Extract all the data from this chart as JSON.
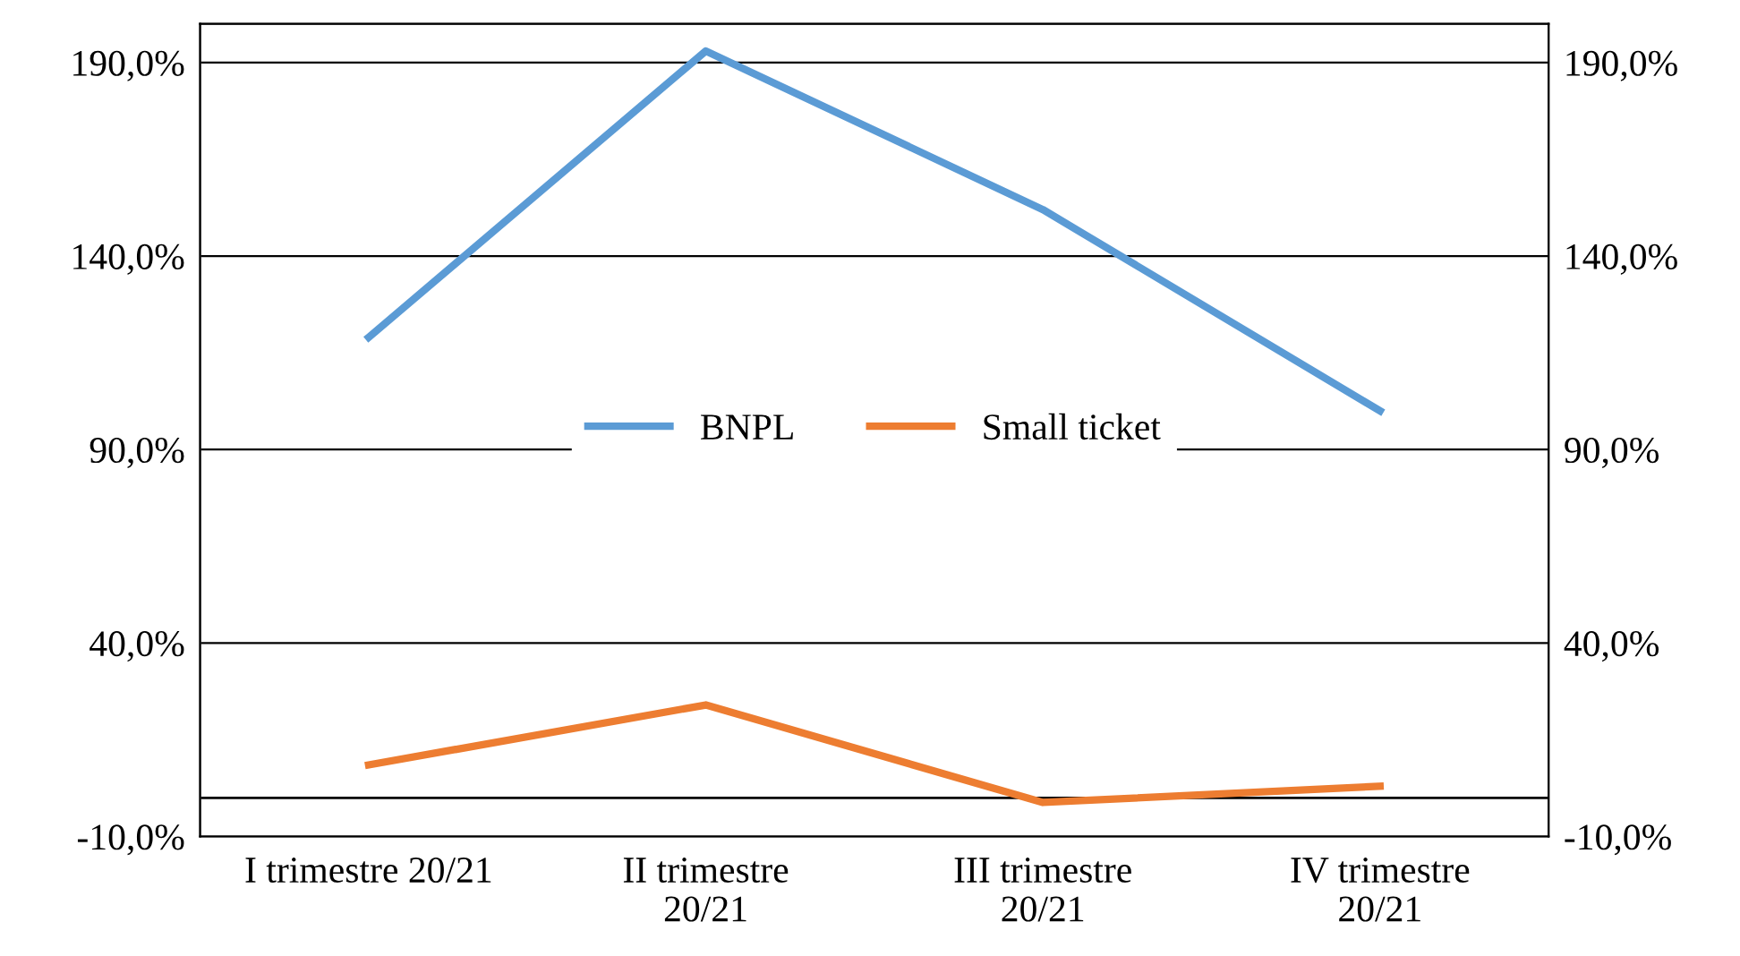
{
  "chart_data": {
    "type": "line",
    "categories": [
      "I trimestre 20/21",
      "II trimestre\n20/21",
      "III trimestre\n20/21",
      "IV trimestre\n20/21"
    ],
    "series": [
      {
        "name": "BNPL",
        "color": "#5b9bd5",
        "values": [
          119,
          193,
          152,
          100
        ]
      },
      {
        "name": "Small ticket",
        "color": "#ed7d31",
        "values": [
          8.5,
          24,
          -1.2,
          3
        ]
      }
    ],
    "ylim": [
      -10,
      200
    ],
    "yticks": [
      {
        "value": -10,
        "label": "-10,0%"
      },
      {
        "value": 40,
        "label": "40,0%"
      },
      {
        "value": 90,
        "label": "90,0%"
      },
      {
        "value": 140,
        "label": "140,0%"
      },
      {
        "value": 190,
        "label": "190,0%"
      }
    ],
    "y2lim": [
      -10,
      200
    ],
    "y2ticks": [
      {
        "value": -10,
        "label": "-10,0%"
      },
      {
        "value": 40,
        "label": "40,0%"
      },
      {
        "value": 90,
        "label": "90,0%"
      },
      {
        "value": 140,
        "label": "140,0%"
      },
      {
        "value": 190,
        "label": "190,0%"
      }
    ],
    "ref_lines": [
      {
        "axis": "y",
        "value": 0,
        "color": "#000000"
      }
    ],
    "grid": "y",
    "legend": "center",
    "marker": "none",
    "line_style": "solid"
  }
}
